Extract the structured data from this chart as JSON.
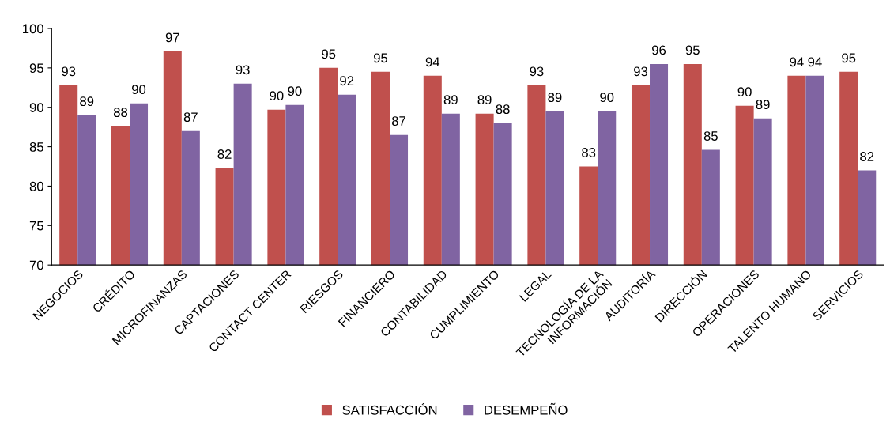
{
  "chart_data": {
    "type": "bar",
    "categories": [
      "NEGOCIOS",
      "CRÉDITO",
      "MICROFINANZAS",
      "CAPTACIONES",
      "CONTACT CENTER",
      "RIESGOS",
      "FINANCIERO",
      "CONTABILIDAD",
      "CUMPLIMIENTO",
      "LEGAL",
      "TECNOLOGÍA DE LA\nINFORMACIÓN",
      "AUDITORÍA",
      "DIRECCIÓN",
      "OPERACIONES",
      "TALENTO HUMANO",
      "SERVICIOS"
    ],
    "series": [
      {
        "name": "SATISFACCIÓN",
        "color": "#c0504d",
        "values": [
          92.8,
          87.6,
          97.1,
          82.3,
          89.7,
          95.0,
          94.5,
          94.0,
          89.2,
          92.8,
          82.5,
          92.8,
          95.5,
          90.2,
          94.0,
          94.5
        ],
        "value_labels": [
          "93",
          "88",
          "97",
          "82",
          "90",
          "95",
          "95",
          "94",
          "89",
          "93",
          "83",
          "93",
          "95",
          "90",
          "94",
          "95"
        ]
      },
      {
        "name": "DESEMPEÑO",
        "color": "#8064a2",
        "values": [
          89.0,
          90.5,
          87.0,
          93.0,
          90.3,
          91.6,
          86.5,
          89.2,
          88.0,
          89.5,
          89.5,
          95.5,
          84.6,
          88.6,
          94.0,
          82.0
        ],
        "value_labels": [
          "89",
          "90",
          "87",
          "93",
          "90",
          "92",
          "87",
          "89",
          "88",
          "89",
          "90",
          "96",
          "85",
          "89",
          "94",
          "82"
        ]
      }
    ],
    "ylim": [
      70,
      100
    ],
    "yticks": [
      70,
      75,
      80,
      85,
      90,
      95,
      100
    ],
    "grid": false,
    "legend": "bottom"
  }
}
